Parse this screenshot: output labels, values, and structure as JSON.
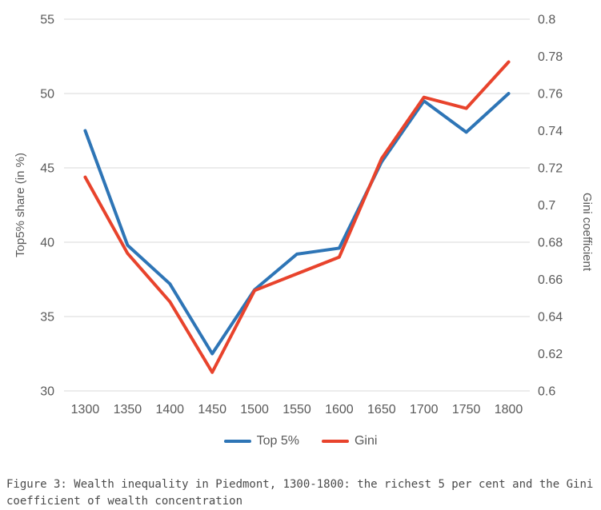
{
  "figure": {
    "caption": {
      "lines": [
        "Figure 3: Wealth inequality in Piedmont, 1300-1800: the richest 5 per cent and the Gini",
        "coefficient of wealth concentration"
      ]
    }
  },
  "chart_data": {
    "type": "line",
    "categories": [
      "1300",
      "1350",
      "1400",
      "1450",
      "1500",
      "1550",
      "1600",
      "1650",
      "1700",
      "1750",
      "1800"
    ],
    "series": [
      {
        "name": "Top 5%",
        "axis": "left",
        "color": "#2E75B6",
        "values": [
          47.5,
          39.8,
          37.2,
          32.5,
          36.8,
          39.2,
          39.6,
          45.4,
          49.5,
          47.4,
          50.0
        ]
      },
      {
        "name": "Gini",
        "axis": "right",
        "color": "#E8432C",
        "values": [
          0.715,
          0.674,
          0.648,
          0.61,
          0.654,
          0.663,
          0.672,
          0.725,
          0.758,
          0.752,
          0.777
        ]
      }
    ],
    "left_axis": {
      "label": "Top5% share (in %)",
      "min": 30,
      "max": 55,
      "tick_step": 5,
      "tick_labels": [
        "55",
        "50",
        "45",
        "40",
        "35",
        "30"
      ]
    },
    "right_axis": {
      "label": "Gini coefficient",
      "min": 0.6,
      "max": 0.8,
      "tick_step": 0.02,
      "tick_labels": [
        "0.8",
        "0.78",
        "0.76",
        "0.74",
        "0.72",
        "0.7",
        "0.68",
        "0.66",
        "0.64",
        "0.62",
        "0.6"
      ]
    },
    "legend": {
      "position": "bottom"
    },
    "grid": "horizontal-only",
    "colors": {
      "tick_text": "#595959",
      "gridline": "#D9D9D9",
      "axis_line": "#D9D9D9"
    }
  }
}
